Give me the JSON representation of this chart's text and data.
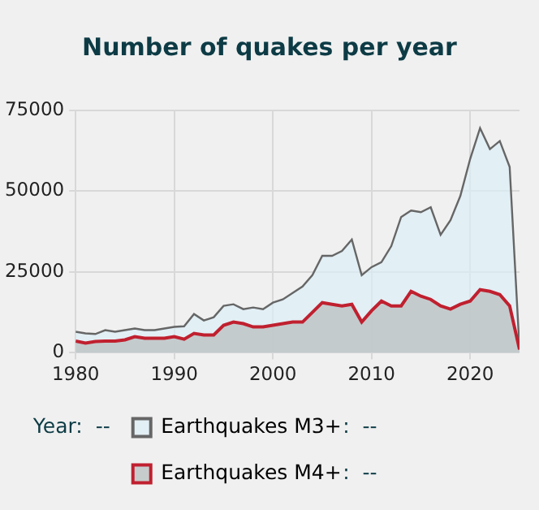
{
  "chart_data": {
    "type": "area",
    "title": "Number of quakes per year",
    "x": [
      1980,
      1981,
      1982,
      1983,
      1984,
      1985,
      1986,
      1987,
      1988,
      1989,
      1990,
      1991,
      1992,
      1993,
      1994,
      1995,
      1996,
      1997,
      1998,
      1999,
      2000,
      2001,
      2002,
      2003,
      2004,
      2005,
      2006,
      2007,
      2008,
      2009,
      2010,
      2011,
      2012,
      2013,
      2014,
      2015,
      2016,
      2017,
      2018,
      2019,
      2020,
      2021,
      2022,
      2023,
      2024,
      2025
    ],
    "series": [
      {
        "name": "Earthquakes M3+",
        "color": "#666666",
        "values": [
          6500,
          6000,
          5800,
          7000,
          6500,
          7000,
          7500,
          7000,
          7000,
          7500,
          8000,
          8200,
          12000,
          10000,
          11000,
          14500,
          15000,
          13500,
          14000,
          13500,
          15500,
          16500,
          18500,
          20500,
          24000,
          30000,
          30000,
          31500,
          35000,
          24000,
          26500,
          28000,
          33000,
          42000,
          44000,
          43500,
          45000,
          36500,
          41000,
          48500,
          60000,
          69500,
          63000,
          65500,
          57500,
          1000
        ]
      },
      {
        "name": "Earthquakes M4+",
        "color": "#c0202f",
        "values": [
          3600,
          3000,
          3500,
          3600,
          3600,
          4000,
          5000,
          4500,
          4500,
          4500,
          5000,
          4200,
          6000,
          5500,
          5500,
          8500,
          9500,
          9000,
          8000,
          8000,
          8500,
          9000,
          9500,
          9500,
          12500,
          15500,
          15000,
          14500,
          15000,
          9500,
          13000,
          16000,
          14500,
          14500,
          19000,
          17500,
          16500,
          14500,
          13500,
          15000,
          16000,
          19500,
          19000,
          18000,
          14500,
          1000
        ]
      }
    ],
    "xlim": [
      1980,
      2025
    ],
    "xticks": [
      1980,
      1990,
      2000,
      2010,
      2020
    ],
    "ylim": [
      0,
      75000
    ],
    "yticks": [
      0,
      25000,
      50000,
      75000
    ],
    "grid": true,
    "legend": "bottom",
    "marker": "none",
    "annotations": [
      "Year:  --",
      ":  --",
      ":  --"
    ]
  }
}
